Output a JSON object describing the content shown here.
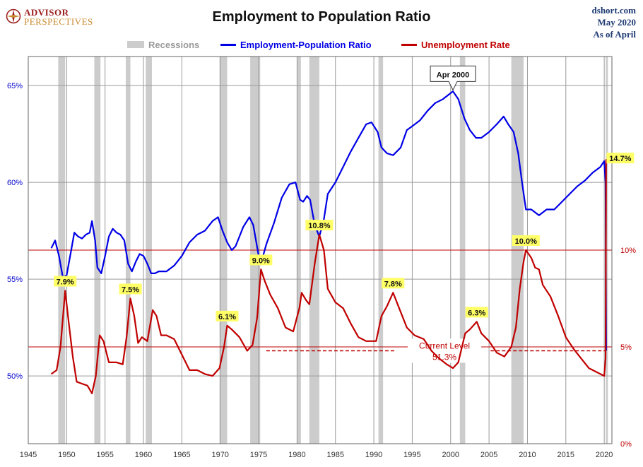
{
  "branding": {
    "logo_line1": "ADVISOR",
    "logo_line2": "PERSPECTIVES",
    "site": "dshort.com",
    "date": "May 2020",
    "as_of": "As of April"
  },
  "colors": {
    "epop": "#0000e6",
    "unemployment": "#c00000",
    "recession": "#cccccc",
    "grid": "#9a9a9a",
    "current_level": "#c00000",
    "label_bg": "#ffff66"
  },
  "chart_data": {
    "type": "line",
    "title": "Employment to Population Ratio",
    "xlabel": "",
    "x_range": [
      1945,
      2021
    ],
    "x_ticks": [
      "1945",
      "1950",
      "1955",
      "1960",
      "1965",
      "1970",
      "1975",
      "1980",
      "1985",
      "1990",
      "1995",
      "2000",
      "2005",
      "2010",
      "2015",
      "2020"
    ],
    "left_axis": {
      "range": [
        46.5,
        66.5
      ],
      "ticks": [
        "50%",
        "55%",
        "60%",
        "65%"
      ],
      "tick_values": [
        50,
        55,
        60,
        65
      ]
    },
    "right_axis": {
      "range": [
        0,
        20
      ],
      "ticks": [
        "0%",
        "5%",
        "10%"
      ],
      "tick_values": [
        0,
        5,
        10
      ]
    },
    "legend": [
      {
        "name": "Recessions",
        "type": "band"
      },
      {
        "name": "Employment-Population Ratio",
        "type": "line"
      },
      {
        "name": "Unemployment Rate",
        "type": "line"
      }
    ],
    "recessions": [
      [
        1948.9,
        1949.8
      ],
      [
        1953.6,
        1954.4
      ],
      [
        1957.7,
        1958.3
      ],
      [
        1960.3,
        1961.1
      ],
      [
        1969.9,
        1970.9
      ],
      [
        1973.9,
        1975.2
      ],
      [
        1980.0,
        1980.5
      ],
      [
        1981.6,
        1982.9
      ],
      [
        1990.6,
        1991.2
      ],
      [
        2001.2,
        2001.9
      ],
      [
        2007.9,
        2009.5
      ],
      [
        2020.2,
        2020.4
      ]
    ],
    "series": [
      {
        "name": "Employment-Population Ratio",
        "axis": "left",
        "points": [
          [
            1948.0,
            56.6
          ],
          [
            1948.5,
            57.0
          ],
          [
            1949.0,
            56.2
          ],
          [
            1949.5,
            55.1
          ],
          [
            1950.0,
            55.2
          ],
          [
            1950.5,
            56.3
          ],
          [
            1951.0,
            57.4
          ],
          [
            1951.5,
            57.2
          ],
          [
            1952.0,
            57.1
          ],
          [
            1952.5,
            57.3
          ],
          [
            1953.0,
            57.4
          ],
          [
            1953.3,
            58.0
          ],
          [
            1953.7,
            57.0
          ],
          [
            1954.0,
            55.6
          ],
          [
            1954.5,
            55.3
          ],
          [
            1955.0,
            56.2
          ],
          [
            1955.5,
            57.2
          ],
          [
            1956.0,
            57.6
          ],
          [
            1956.5,
            57.4
          ],
          [
            1957.0,
            57.3
          ],
          [
            1957.5,
            57.0
          ],
          [
            1958.0,
            55.8
          ],
          [
            1958.5,
            55.4
          ],
          [
            1959.0,
            55.9
          ],
          [
            1959.5,
            56.3
          ],
          [
            1960.0,
            56.2
          ],
          [
            1960.5,
            55.8
          ],
          [
            1961.0,
            55.3
          ],
          [
            1961.5,
            55.3
          ],
          [
            1962.0,
            55.4
          ],
          [
            1963.0,
            55.4
          ],
          [
            1964.0,
            55.7
          ],
          [
            1965.0,
            56.2
          ],
          [
            1966.0,
            56.9
          ],
          [
            1967.0,
            57.3
          ],
          [
            1968.0,
            57.5
          ],
          [
            1969.0,
            58.0
          ],
          [
            1969.7,
            58.2
          ],
          [
            1970.3,
            57.5
          ],
          [
            1970.9,
            56.9
          ],
          [
            1971.5,
            56.5
          ],
          [
            1972.0,
            56.7
          ],
          [
            1973.0,
            57.7
          ],
          [
            1973.8,
            58.2
          ],
          [
            1974.3,
            57.8
          ],
          [
            1975.0,
            56.2
          ],
          [
            1975.5,
            56.1
          ],
          [
            1976.0,
            56.8
          ],
          [
            1977.0,
            57.9
          ],
          [
            1978.0,
            59.2
          ],
          [
            1979.0,
            59.9
          ],
          [
            1979.8,
            60.0
          ],
          [
            1980.4,
            59.1
          ],
          [
            1980.8,
            59.0
          ],
          [
            1981.3,
            59.3
          ],
          [
            1981.7,
            59.1
          ],
          [
            1982.3,
            57.8
          ],
          [
            1982.9,
            57.2
          ],
          [
            1983.5,
            58.1
          ],
          [
            1984.0,
            59.4
          ],
          [
            1985.0,
            60.0
          ],
          [
            1986.0,
            60.8
          ],
          [
            1987.0,
            61.6
          ],
          [
            1988.0,
            62.3
          ],
          [
            1989.0,
            63.0
          ],
          [
            1989.7,
            63.1
          ],
          [
            1990.5,
            62.6
          ],
          [
            1991.0,
            61.8
          ],
          [
            1991.7,
            61.5
          ],
          [
            1992.5,
            61.4
          ],
          [
            1993.5,
            61.8
          ],
          [
            1994.3,
            62.7
          ],
          [
            1995.0,
            62.9
          ],
          [
            1996.0,
            63.2
          ],
          [
            1997.0,
            63.7
          ],
          [
            1998.0,
            64.1
          ],
          [
            1999.0,
            64.3
          ],
          [
            2000.3,
            64.7
          ],
          [
            2001.0,
            64.3
          ],
          [
            2001.8,
            63.3
          ],
          [
            2002.5,
            62.7
          ],
          [
            2003.3,
            62.3
          ],
          [
            2004.0,
            62.3
          ],
          [
            2005.0,
            62.6
          ],
          [
            2006.0,
            63.0
          ],
          [
            2006.9,
            63.4
          ],
          [
            2007.5,
            63.0
          ],
          [
            2008.2,
            62.6
          ],
          [
            2008.8,
            61.5
          ],
          [
            2009.3,
            60.0
          ],
          [
            2009.8,
            58.6
          ],
          [
            2010.5,
            58.6
          ],
          [
            2011.5,
            58.3
          ],
          [
            2012.5,
            58.6
          ],
          [
            2013.5,
            58.6
          ],
          [
            2014.5,
            59.0
          ],
          [
            2015.5,
            59.4
          ],
          [
            2016.5,
            59.8
          ],
          [
            2017.5,
            60.1
          ],
          [
            2018.5,
            60.5
          ],
          [
            2019.5,
            60.8
          ],
          [
            2020.0,
            61.1
          ],
          [
            2020.17,
            60.0
          ],
          [
            2020.25,
            51.3
          ]
        ]
      },
      {
        "name": "Unemployment Rate",
        "axis": "right",
        "points": [
          [
            1948.0,
            3.6
          ],
          [
            1948.7,
            3.8
          ],
          [
            1949.2,
            5.0
          ],
          [
            1949.8,
            7.9
          ],
          [
            1950.2,
            6.5
          ],
          [
            1950.8,
            4.5
          ],
          [
            1951.3,
            3.2
          ],
          [
            1952.0,
            3.1
          ],
          [
            1952.7,
            3.0
          ],
          [
            1953.3,
            2.6
          ],
          [
            1953.8,
            3.5
          ],
          [
            1954.3,
            5.6
          ],
          [
            1954.8,
            5.3
          ],
          [
            1955.5,
            4.2
          ],
          [
            1956.5,
            4.2
          ],
          [
            1957.3,
            4.1
          ],
          [
            1957.8,
            5.5
          ],
          [
            1958.3,
            7.5
          ],
          [
            1958.8,
            6.6
          ],
          [
            1959.3,
            5.2
          ],
          [
            1959.8,
            5.5
          ],
          [
            1960.5,
            5.3
          ],
          [
            1961.2,
            6.9
          ],
          [
            1961.7,
            6.6
          ],
          [
            1962.3,
            5.6
          ],
          [
            1963.0,
            5.6
          ],
          [
            1964.0,
            5.4
          ],
          [
            1965.0,
            4.6
          ],
          [
            1966.0,
            3.8
          ],
          [
            1967.0,
            3.8
          ],
          [
            1968.0,
            3.6
          ],
          [
            1969.0,
            3.5
          ],
          [
            1969.9,
            3.9
          ],
          [
            1970.5,
            5.0
          ],
          [
            1970.9,
            6.1
          ],
          [
            1971.5,
            5.9
          ],
          [
            1972.5,
            5.5
          ],
          [
            1973.5,
            4.8
          ],
          [
            1974.2,
            5.1
          ],
          [
            1974.8,
            6.5
          ],
          [
            1975.3,
            9.0
          ],
          [
            1975.8,
            8.4
          ],
          [
            1976.5,
            7.7
          ],
          [
            1977.5,
            7.0
          ],
          [
            1978.5,
            6.0
          ],
          [
            1979.5,
            5.8
          ],
          [
            1980.3,
            7.0
          ],
          [
            1980.6,
            7.8
          ],
          [
            1981.2,
            7.4
          ],
          [
            1981.6,
            7.2
          ],
          [
            1982.3,
            9.3
          ],
          [
            1982.9,
            10.8
          ],
          [
            1983.5,
            10.0
          ],
          [
            1984.0,
            8.0
          ],
          [
            1985.0,
            7.3
          ],
          [
            1986.0,
            7.0
          ],
          [
            1987.0,
            6.2
          ],
          [
            1988.0,
            5.5
          ],
          [
            1989.0,
            5.3
          ],
          [
            1990.3,
            5.3
          ],
          [
            1991.0,
            6.6
          ],
          [
            1991.7,
            7.1
          ],
          [
            1992.5,
            7.8
          ],
          [
            1993.3,
            7.0
          ],
          [
            1994.3,
            6.0
          ],
          [
            1995.3,
            5.6
          ],
          [
            1996.5,
            5.4
          ],
          [
            1997.5,
            4.8
          ],
          [
            1998.5,
            4.4
          ],
          [
            1999.5,
            4.1
          ],
          [
            2000.3,
            3.9
          ],
          [
            2001.0,
            4.2
          ],
          [
            2001.9,
            5.7
          ],
          [
            2002.5,
            5.9
          ],
          [
            2003.4,
            6.3
          ],
          [
            2004.0,
            5.7
          ],
          [
            2005.0,
            5.3
          ],
          [
            2006.0,
            4.7
          ],
          [
            2007.0,
            4.5
          ],
          [
            2007.9,
            5.0
          ],
          [
            2008.5,
            6.0
          ],
          [
            2009.0,
            8.0
          ],
          [
            2009.5,
            9.4
          ],
          [
            2009.8,
            10.0
          ],
          [
            2010.5,
            9.6
          ],
          [
            2011.0,
            9.1
          ],
          [
            2011.5,
            9.0
          ],
          [
            2012.0,
            8.2
          ],
          [
            2013.0,
            7.6
          ],
          [
            2014.0,
            6.6
          ],
          [
            2015.0,
            5.5
          ],
          [
            2016.0,
            4.9
          ],
          [
            2017.0,
            4.4
          ],
          [
            2018.0,
            3.9
          ],
          [
            2019.0,
            3.7
          ],
          [
            2020.0,
            3.5
          ],
          [
            2020.17,
            4.4
          ],
          [
            2020.25,
            14.7
          ]
        ]
      }
    ],
    "annotations": {
      "peak": {
        "text": "Apr 2000",
        "x": 2000.3,
        "y": 64.7
      },
      "current_level": {
        "label": "Current Level",
        "value_label": "51.3%",
        "value": 51.3,
        "x_start": 1976.0,
        "x_end": 2020.25
      },
      "ur_labels": [
        {
          "text": "7.9%",
          "x": 1949.8,
          "y": 7.9
        },
        {
          "text": "7.5%",
          "x": 1958.3,
          "y": 7.5
        },
        {
          "text": "6.1%",
          "x": 1970.9,
          "y": 6.1
        },
        {
          "text": "9.0%",
          "x": 1975.3,
          "y": 9.0
        },
        {
          "text": "10.8%",
          "x": 1982.9,
          "y": 10.8
        },
        {
          "text": "7.8%",
          "x": 1992.5,
          "y": 7.8
        },
        {
          "text": "6.3%",
          "x": 2003.4,
          "y": 6.3
        },
        {
          "text": "10.0%",
          "x": 2009.8,
          "y": 10.0
        },
        {
          "text": "14.7%",
          "x": 2020.25,
          "y": 14.7
        }
      ]
    }
  }
}
